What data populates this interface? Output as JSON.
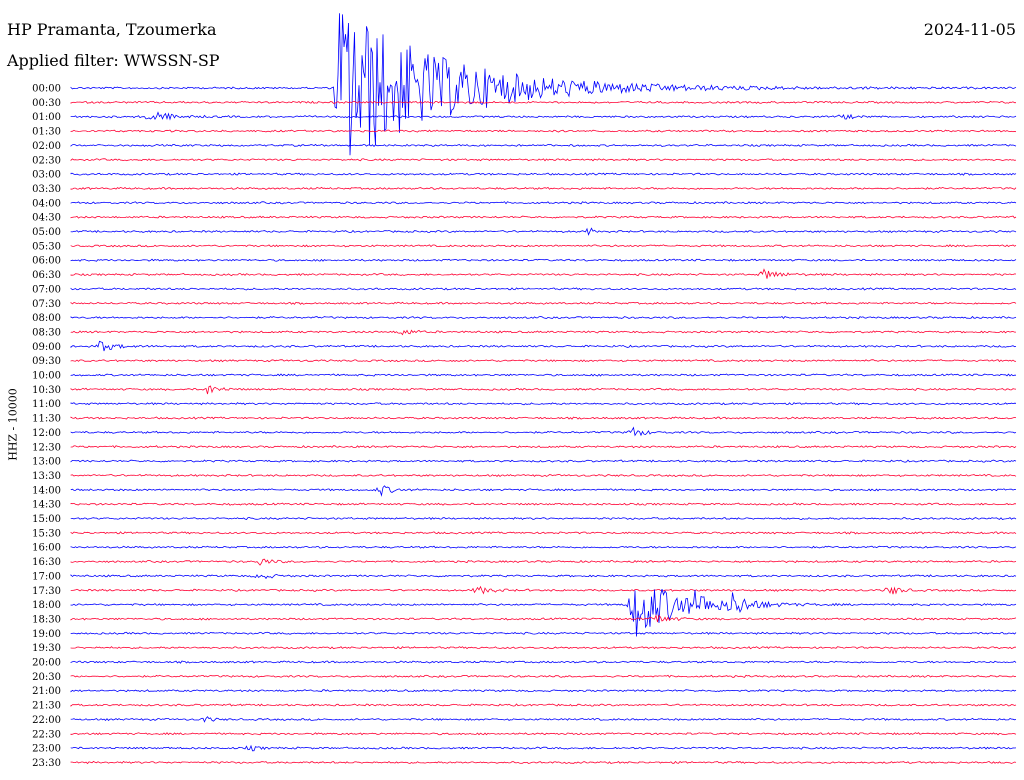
{
  "header": {
    "station": "HP Pramanta, Tzoumerka",
    "date": "2024-11-05",
    "filter_label": "Applied filter: WWSSN-SP"
  },
  "channel_label": "HHZ - 10000",
  "colors": {
    "even_trace": "#0000ff",
    "odd_trace": "#ff0033"
  },
  "chart_data": {
    "type": "line",
    "title": "HP Pramanta, Tzoumerka",
    "ylabel": "HHZ - 10000",
    "row_labels": [
      "00:00",
      "00:30",
      "01:00",
      "01:30",
      "02:00",
      "02:30",
      "03:00",
      "03:30",
      "04:00",
      "04:30",
      "05:00",
      "05:30",
      "06:00",
      "06:30",
      "07:00",
      "07:30",
      "08:00",
      "08:30",
      "09:00",
      "09:30",
      "10:00",
      "10:30",
      "11:00",
      "11:30",
      "12:00",
      "12:30",
      "13:00",
      "13:30",
      "14:00",
      "14:30",
      "15:00",
      "15:30",
      "16:00",
      "16:30",
      "17:00",
      "17:30",
      "18:00",
      "18:30",
      "19:00",
      "19:30",
      "20:00",
      "20:30",
      "21:00",
      "21:30",
      "22:00",
      "22:30",
      "23:00",
      "23:30"
    ],
    "row_duration_minutes": 30,
    "events": [
      {
        "row": 0,
        "t_min": 8.5,
        "amplitude": 90,
        "decay_min": 3.0,
        "note": "large earthquake"
      },
      {
        "row": 2,
        "t_min": 2.5,
        "amplitude": 7,
        "decay_min": 0.5
      },
      {
        "row": 2,
        "t_min": 24.5,
        "amplitude": 4,
        "decay_min": 0.2
      },
      {
        "row": 10,
        "t_min": 16.5,
        "amplitude": 8,
        "decay_min": 0.05
      },
      {
        "row": 13,
        "t_min": 22.0,
        "amplitude": 6,
        "decay_min": 0.4
      },
      {
        "row": 17,
        "t_min": 10.5,
        "amplitude": 4,
        "decay_min": 0.3
      },
      {
        "row": 18,
        "t_min": 0.9,
        "amplitude": 6,
        "decay_min": 0.4
      },
      {
        "row": 21,
        "t_min": 4.3,
        "amplitude": 6,
        "decay_min": 0.3
      },
      {
        "row": 24,
        "t_min": 17.8,
        "amplitude": 6,
        "decay_min": 0.3
      },
      {
        "row": 28,
        "t_min": 9.8,
        "amplitude": 6,
        "decay_min": 0.3
      },
      {
        "row": 33,
        "t_min": 6.0,
        "amplitude": 4,
        "decay_min": 0.3
      },
      {
        "row": 34,
        "t_min": 6.0,
        "amplitude": 4,
        "decay_min": 0.3
      },
      {
        "row": 35,
        "t_min": 12.9,
        "amplitude": 4,
        "decay_min": 0.4
      },
      {
        "row": 35,
        "t_min": 26.0,
        "amplitude": 5,
        "decay_min": 0.3
      },
      {
        "row": 36,
        "t_min": 17.8,
        "amplitude": 38,
        "decay_min": 1.2,
        "note": "earthquake"
      },
      {
        "row": 36,
        "t_min": 19.8,
        "amplitude": 8,
        "decay_min": 0.4
      },
      {
        "row": 36,
        "t_min": 21.0,
        "amplitude": 10,
        "decay_min": 0.5
      },
      {
        "row": 37,
        "t_min": 18.5,
        "amplitude": 5,
        "decay_min": 0.4
      },
      {
        "row": 44,
        "t_min": 4.2,
        "amplitude": 4,
        "decay_min": 0.2
      },
      {
        "row": 46,
        "t_min": 5.7,
        "amplitude": 3,
        "decay_min": 0.2
      }
    ]
  }
}
